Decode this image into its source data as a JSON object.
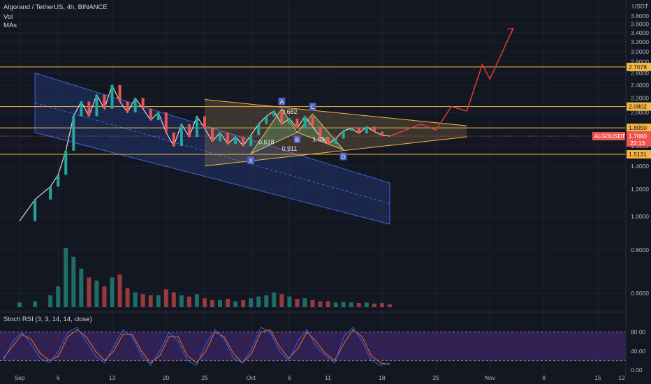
{
  "header": {
    "title": "Algorand / TetherUS, 4h, BINANCE",
    "vol_label": "Vol",
    "mas_label": "MAs"
  },
  "indicator": {
    "label": "Stoch RSI (3, 3, 14, 14, close)"
  },
  "currency": "USDT",
  "colors": {
    "background": "#131722",
    "grid": "#1f2331",
    "up": "#26a69a",
    "down": "#ef5350",
    "channel_fill": "#2a4aa8",
    "channel_line": "#3f63d8",
    "level_line": "#f5b642",
    "triangle_line": "#f5b642",
    "harmonic_line": "#e2c36b",
    "projection": "#e53935",
    "stoch_k": "#2962ff",
    "stoch_d": "#ff6d00",
    "stoch_band": "#4a2a7a"
  },
  "chart_data": {
    "type": "line",
    "title": "Algorand / TetherUS, 4h, BINANCE",
    "symbol": "ALGOUSDT",
    "last_price": "1.7080",
    "countdown": "22:13",
    "y_scale": "log",
    "ylim": [
      0.55,
      3.9
    ],
    "price_ticks": [
      "3.8000",
      "3.6000",
      "3.4000",
      "3.2000",
      "3.0000",
      "2.8000",
      "2.6000",
      "2.4000",
      "2.2000",
      "2.0000",
      "1.8000",
      "1.6000",
      "1.4000",
      "1.2000",
      "1.0000",
      "0.8000",
      "0.6000"
    ],
    "x_ticks": [
      "Sep",
      "6",
      "13",
      "20",
      "25",
      "Oct",
      "6",
      "11",
      "18",
      "25",
      "Nov",
      "8",
      "15"
    ],
    "x_tick_dates": [
      "2021-09-01",
      "2021-09-06",
      "2021-09-13",
      "2021-09-20",
      "2021-09-25",
      "2021-10-01",
      "2021-10-06",
      "2021-10-11",
      "2021-10-18",
      "2021-10-25",
      "2021-11-01",
      "2021-11-08",
      "2021-11-15"
    ],
    "x_last_label": "12",
    "horizontal_levels": [
      {
        "value": 2.7078,
        "label": "2.7078"
      },
      {
        "value": 2.0802,
        "label": "2.0802"
      },
      {
        "value": 1.805,
        "label": "1.8050"
      },
      {
        "value": 1.5131,
        "label": "1.5131"
      }
    ],
    "price_path": [
      [
        "2021-09-01",
        0.97
      ],
      [
        "2021-09-03",
        1.12
      ],
      [
        "2021-09-05",
        1.22
      ],
      [
        "2021-09-06",
        1.32
      ],
      [
        "2021-09-07",
        1.55
      ],
      [
        "2021-09-08",
        1.95
      ],
      [
        "2021-09-09",
        2.15
      ],
      [
        "2021-09-10",
        1.95
      ],
      [
        "2021-09-11",
        2.25
      ],
      [
        "2021-09-12",
        2.05
      ],
      [
        "2021-09-13",
        2.4
      ],
      [
        "2021-09-14",
        2.15
      ],
      [
        "2021-09-15",
        2.0
      ],
      [
        "2021-09-16",
        2.2
      ],
      [
        "2021-09-17",
        2.05
      ],
      [
        "2021-09-18",
        1.9
      ],
      [
        "2021-09-19",
        2.0
      ],
      [
        "2021-09-20",
        1.75
      ],
      [
        "2021-09-21",
        1.6
      ],
      [
        "2021-09-22",
        1.85
      ],
      [
        "2021-09-23",
        1.7
      ],
      [
        "2021-09-24",
        1.95
      ],
      [
        "2021-09-25",
        1.8
      ],
      [
        "2021-09-26",
        1.65
      ],
      [
        "2021-09-27",
        1.75
      ],
      [
        "2021-09-28",
        1.62
      ],
      [
        "2021-09-29",
        1.7
      ],
      [
        "2021-09-30",
        1.6
      ],
      [
        "2021-10-01",
        1.72
      ],
      [
        "2021-10-02",
        1.85
      ],
      [
        "2021-10-03",
        1.95
      ],
      [
        "2021-10-04",
        2.02
      ],
      [
        "2021-10-05",
        1.85
      ],
      [
        "2021-10-06",
        1.92
      ],
      [
        "2021-10-07",
        1.8
      ],
      [
        "2021-10-08",
        1.95
      ],
      [
        "2021-10-09",
        1.82
      ],
      [
        "2021-10-10",
        1.7
      ],
      [
        "2021-10-11",
        1.62
      ],
      [
        "2021-10-12",
        1.68
      ],
      [
        "2021-10-13",
        1.77
      ],
      [
        "2021-10-14",
        1.8
      ],
      [
        "2021-10-15",
        1.74
      ],
      [
        "2021-10-16",
        1.82
      ],
      [
        "2021-10-17",
        1.76
      ],
      [
        "2021-10-18",
        1.72
      ],
      [
        "2021-10-19",
        1.708
      ]
    ],
    "volume_bars": [
      [
        "2021-09-01",
        0.08
      ],
      [
        "2021-09-03",
        0.1
      ],
      [
        "2021-09-05",
        0.2
      ],
      [
        "2021-09-06",
        0.35
      ],
      [
        "2021-09-07",
        1.0
      ],
      [
        "2021-09-08",
        0.85
      ],
      [
        "2021-09-09",
        0.65
      ],
      [
        "2021-09-10",
        0.5
      ],
      [
        "2021-09-11",
        0.45
      ],
      [
        "2021-09-12",
        0.35
      ],
      [
        "2021-09-13",
        0.5
      ],
      [
        "2021-09-14",
        0.55
      ],
      [
        "2021-09-15",
        0.32
      ],
      [
        "2021-09-16",
        0.25
      ],
      [
        "2021-09-17",
        0.22
      ],
      [
        "2021-09-18",
        0.2
      ],
      [
        "2021-09-19",
        0.2
      ],
      [
        "2021-09-20",
        0.3
      ],
      [
        "2021-09-21",
        0.25
      ],
      [
        "2021-09-22",
        0.2
      ],
      [
        "2021-09-23",
        0.18
      ],
      [
        "2021-09-24",
        0.22
      ],
      [
        "2021-09-25",
        0.15
      ],
      [
        "2021-09-26",
        0.12
      ],
      [
        "2021-09-27",
        0.12
      ],
      [
        "2021-09-28",
        0.14
      ],
      [
        "2021-09-29",
        0.1
      ],
      [
        "2021-09-30",
        0.12
      ],
      [
        "2021-10-01",
        0.15
      ],
      [
        "2021-10-02",
        0.18
      ],
      [
        "2021-10-03",
        0.2
      ],
      [
        "2021-10-04",
        0.25
      ],
      [
        "2021-10-05",
        0.22
      ],
      [
        "2021-10-06",
        0.18
      ],
      [
        "2021-10-07",
        0.14
      ],
      [
        "2021-10-08",
        0.15
      ],
      [
        "2021-10-09",
        0.12
      ],
      [
        "2021-10-10",
        0.1
      ],
      [
        "2021-10-11",
        0.1
      ],
      [
        "2021-10-12",
        0.08
      ],
      [
        "2021-10-13",
        0.09
      ],
      [
        "2021-10-14",
        0.08
      ],
      [
        "2021-10-15",
        0.07
      ],
      [
        "2021-10-16",
        0.08
      ],
      [
        "2021-10-17",
        0.06
      ],
      [
        "2021-10-18",
        0.07
      ],
      [
        "2021-10-19",
        0.05
      ]
    ],
    "projection": [
      [
        "2021-10-19",
        1.708
      ],
      [
        "2021-10-23",
        1.85
      ],
      [
        "2021-10-25",
        1.78
      ],
      [
        "2021-10-27",
        2.08
      ],
      [
        "2021-10-29",
        2.02
      ],
      [
        "2021-10-31",
        2.75
      ],
      [
        "2021-11-01",
        2.5
      ],
      [
        "2021-11-04",
        3.5
      ]
    ],
    "harmonic_points": [
      {
        "label": "X",
        "date": "2021-10-01",
        "value": 1.52
      },
      {
        "label": "A",
        "date": "2021-10-05",
        "value": 2.05
      },
      {
        "label": "B",
        "date": "2021-10-07",
        "value": 1.75
      },
      {
        "label": "C",
        "date": "2021-10-09",
        "value": 1.98
      },
      {
        "label": "D",
        "date": "2021-10-13",
        "value": 1.56
      }
    ],
    "harmonic_ratios": [
      "0.682",
      "0.618",
      "0.911",
      "1.694"
    ],
    "stoch_rsi": {
      "ticks": [
        "80.00",
        "40.00",
        "0.00"
      ],
      "band": [
        20,
        80
      ],
      "k_values": [
        20,
        60,
        80,
        55,
        25,
        15,
        40,
        80,
        90,
        60,
        30,
        15,
        50,
        85,
        70,
        30,
        10,
        40,
        80,
        60,
        20,
        10,
        55,
        85,
        65,
        25,
        15,
        45,
        90,
        80,
        40,
        20,
        60,
        85,
        50,
        30,
        15,
        70,
        90,
        60,
        20,
        10,
        15
      ],
      "d_values": [
        25,
        50,
        75,
        65,
        35,
        20,
        30,
        70,
        85,
        70,
        40,
        20,
        40,
        75,
        75,
        40,
        15,
        30,
        70,
        70,
        30,
        15,
        40,
        80,
        70,
        35,
        15,
        35,
        80,
        85,
        50,
        25,
        45,
        80,
        60,
        35,
        20,
        55,
        85,
        70,
        30,
        15,
        12
      ]
    }
  }
}
